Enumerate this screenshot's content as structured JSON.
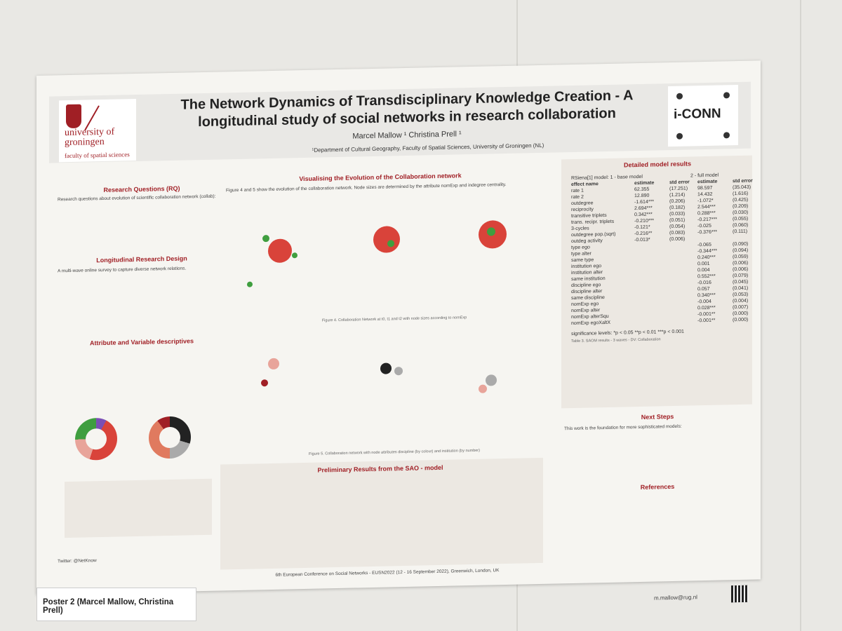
{
  "header": {
    "title_line1": "The Network Dynamics of Transdisciplinary Knowledge Creation - A",
    "title_line2": "longitudinal study of social networks in research collaboration",
    "authors": "Marcel Mallow ¹    Christina Prell ¹",
    "affiliation": "¹Department of Cultural Geography, Faculty of Spatial Sciences, University of Groningen (NL)",
    "uni_name_line1": "university of",
    "uni_name_line2": "groningen",
    "faculty": "faculty of spatial sciences",
    "project_logo": "i-CONN"
  },
  "sections": {
    "rq": "Research Questions (RQ)",
    "rq_text": "Research questions about evolution of scientific collaboration network (collab):",
    "design": "Longitudinal Research Design",
    "design_text": "A multi-wave online survey to capture diverse network relations.",
    "attr": "Attribute and Variable descriptives",
    "vis": "Visualising the Evolution of the Collaboration network",
    "vis_text": "Figure 4 and 5 show the evolution of the collaboration network. Node sizes are determined by the attribute nomExp and indegree centrality.",
    "fig4": "Figure 4. Collaboration Network at t0, t1 and t2 with node sizes according to nomExp",
    "fig5": "Figure 5. Collaboration network with node attributes discipline (by colour) and institution (by number)",
    "prelim": "Preliminary Results from the SAO - model",
    "detailed": "Detailed model results",
    "next": "Next Steps",
    "next_text": "This work is the foundation for more sophisticated models:",
    "refs": "References"
  },
  "model_table": {
    "caption_left": "RSiena[1] model: 1 - base model",
    "caption_right": "2 - full model",
    "headers": [
      "effect name",
      "estimate",
      "std error",
      "estimate",
      "std error"
    ],
    "rows": [
      [
        "rate 1",
        "62.355",
        "(17.251)",
        "98.597",
        "(35.043)"
      ],
      [
        "rate 2",
        "12.890",
        "(1.214)",
        "14.432",
        "(1.616)"
      ],
      [
        "outdegree",
        "-1.614***",
        "(0.206)",
        "-1.072*",
        "(0.425)"
      ],
      [
        "reciprocity",
        "2.694***",
        "(0.182)",
        "2.544***",
        "(0.209)"
      ],
      [
        "transitive triplets",
        "0.342***",
        "(0.033)",
        "0.288***",
        "(0.030)"
      ],
      [
        "trans. recipr. triplets",
        "-0.210***",
        "(0.051)",
        "-0.217***",
        "(0.055)"
      ],
      [
        "3-cycles",
        "-0.121*",
        "(0.054)",
        "-0.025",
        "(0.060)"
      ],
      [
        "outdegree pop.(sqrt)",
        "-0.216**",
        "(0.083)",
        "-0.376***",
        "(0.111)"
      ],
      [
        "outdeg activity",
        "-0.013*",
        "(0.006)",
        "",
        ""
      ],
      [
        "type ego",
        "",
        "",
        "-0.065",
        "(0.090)"
      ],
      [
        "type alter",
        "",
        "",
        "-0.344***",
        "(0.094)"
      ],
      [
        "same type",
        "",
        "",
        "0.240***",
        "(0.059)"
      ],
      [
        "institution ego",
        "",
        "",
        "0.001",
        "(0.006)"
      ],
      [
        "institution alter",
        "",
        "",
        "0.004",
        "(0.006)"
      ],
      [
        "same institution",
        "",
        "",
        "0.552***",
        "(0.079)"
      ],
      [
        "discipline ego",
        "",
        "",
        "-0.016",
        "(0.045)"
      ],
      [
        "discipline alter",
        "",
        "",
        "0.057",
        "(0.041)"
      ],
      [
        "same discipline",
        "",
        "",
        "0.340***",
        "(0.053)"
      ],
      [
        "nomExp ego",
        "",
        "",
        "-0.004",
        "(0.004)"
      ],
      [
        "nomExp alter",
        "",
        "",
        "0.028***",
        "(0.007)"
      ],
      [
        "nomExp alterSqu",
        "",
        "",
        "-0.001**",
        "(0.000)"
      ],
      [
        "nomExp egoXaltX",
        "",
        "",
        "-0.001**",
        "(0.000)"
      ]
    ],
    "sig": "significance levels: *p < 0.05 **p < 0.01 ***p < 0.001",
    "caption": "Table 3. SAOM results - 3 waves - DV: Collaboration"
  },
  "footer": {
    "twitter": "Twitter: @NetKnow",
    "conference": "6th European Conference on Social Networks - EUSN2022 (12 - 16 September 2022), Greenwich, London, UK",
    "email": "m.mallow@rug.nl"
  },
  "label_card": "Poster 2 (Marcel Mallow, Christina Prell)",
  "colors": {
    "brand_red": "#a01f25",
    "node_red": "#d9433a",
    "node_green": "#3f9e3f"
  }
}
